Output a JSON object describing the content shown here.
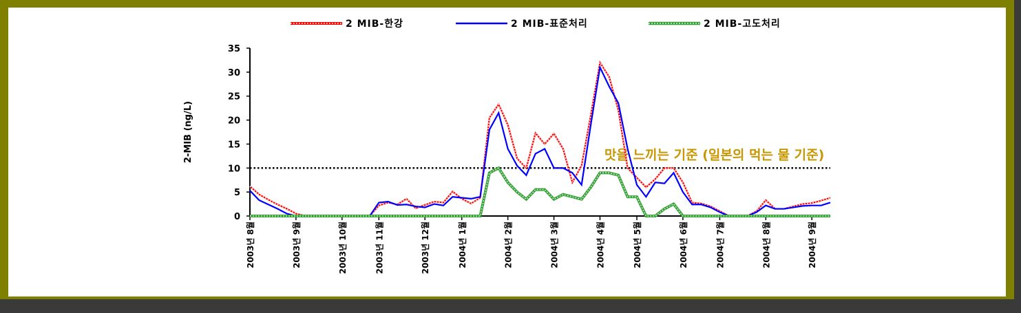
{
  "chart_data": {
    "type": "line",
    "ylabel": "2-MIB (ng/L)",
    "xlabel": "",
    "ylim": [
      0,
      35
    ],
    "yticks": [
      0,
      5,
      10,
      15,
      20,
      25,
      30,
      35
    ],
    "ytick_labels": [
      "0",
      "5",
      "10",
      "15",
      "20",
      "25",
      "30",
      "35"
    ],
    "x_index_range": [
      0,
      63
    ],
    "xticks": [
      0,
      5,
      10,
      14,
      19,
      23,
      28,
      33,
      38,
      42,
      47,
      51,
      56,
      61
    ],
    "xtick_labels": [
      "2003년 8월",
      "2003년 9월",
      "2003년 10월",
      "2003년 11월",
      "2003년 12월",
      "2004년 1월",
      "2004년 2월",
      "2004년 3월",
      "2004년 4월",
      "2004년 5월",
      "2004년 6월",
      "2004년 7월",
      "2004년 8월",
      "2004년 9월"
    ],
    "series": [
      {
        "name": "2 MIB-한강",
        "color": "#ff0000",
        "values": [
          6.2,
          4.5,
          3.4,
          2.4,
          1.5,
          0.5,
          0,
          0,
          0,
          0,
          0,
          0,
          0,
          0,
          2.2,
          2.8,
          2.4,
          3.6,
          1.6,
          2.3,
          3.0,
          2.8,
          5.1,
          3.6,
          2.6,
          3.8,
          20.5,
          23.3,
          19.0,
          12.0,
          10.0,
          17.3,
          15.0,
          17.2,
          14.0,
          7.0,
          10.5,
          21.0,
          32.0,
          29.0,
          22.0,
          10.0,
          8.0,
          6.0,
          7.7,
          10.0,
          10.0,
          7.0,
          2.8,
          2.6,
          2.0,
          1.0,
          0,
          0,
          0,
          1.0,
          3.3,
          1.5,
          1.5,
          2.0,
          2.5,
          2.7,
          3.2,
          3.8
        ]
      },
      {
        "name": "2 MIB-표준처리",
        "color": "#0000ff",
        "values": [
          5.3,
          3.3,
          2.4,
          1.5,
          0.5,
          0,
          0,
          0,
          0,
          0,
          0,
          0,
          0,
          0,
          2.8,
          3.0,
          2.3,
          2.4,
          2.0,
          1.8,
          2.5,
          2.2,
          4.0,
          3.8,
          3.6,
          4.0,
          18.0,
          21.5,
          14.0,
          10.5,
          8.5,
          13.0,
          14.0,
          10.0,
          10.0,
          9.0,
          6.5,
          19.0,
          31.0,
          27.0,
          23.5,
          14.0,
          6.5,
          4.0,
          7.0,
          6.8,
          9.0,
          5.0,
          2.4,
          2.4,
          1.8,
          0.8,
          0,
          0,
          0,
          0.8,
          2.2,
          1.5,
          1.5,
          1.8,
          2.1,
          2.2,
          2.2,
          2.8
        ]
      },
      {
        "name": "2 MIB-고도처리",
        "color": "#33a033",
        "values": [
          0,
          0,
          0,
          0,
          0,
          0,
          0,
          0,
          0,
          0,
          0,
          0,
          0,
          0,
          0,
          0,
          0,
          0,
          0,
          0,
          0,
          0,
          0,
          0,
          0,
          0,
          9.0,
          10.0,
          7.0,
          5.0,
          3.5,
          5.5,
          5.5,
          3.5,
          4.5,
          4.0,
          3.5,
          6.0,
          9.0,
          9.0,
          8.5,
          4.0,
          4.0,
          0,
          0,
          1.5,
          2.5,
          0,
          0,
          0,
          0,
          0,
          0,
          0,
          0,
          0,
          0,
          0,
          0,
          0,
          0,
          0,
          0,
          0
        ]
      }
    ],
    "reference_line": {
      "y": 10,
      "style": "dotted",
      "color": "#000000"
    },
    "annotation": "맛을 느끼는 기준 (일본의 먹는 물 기준)",
    "annotation_color": "#c89600",
    "legend_position": "top",
    "grid": false
  }
}
